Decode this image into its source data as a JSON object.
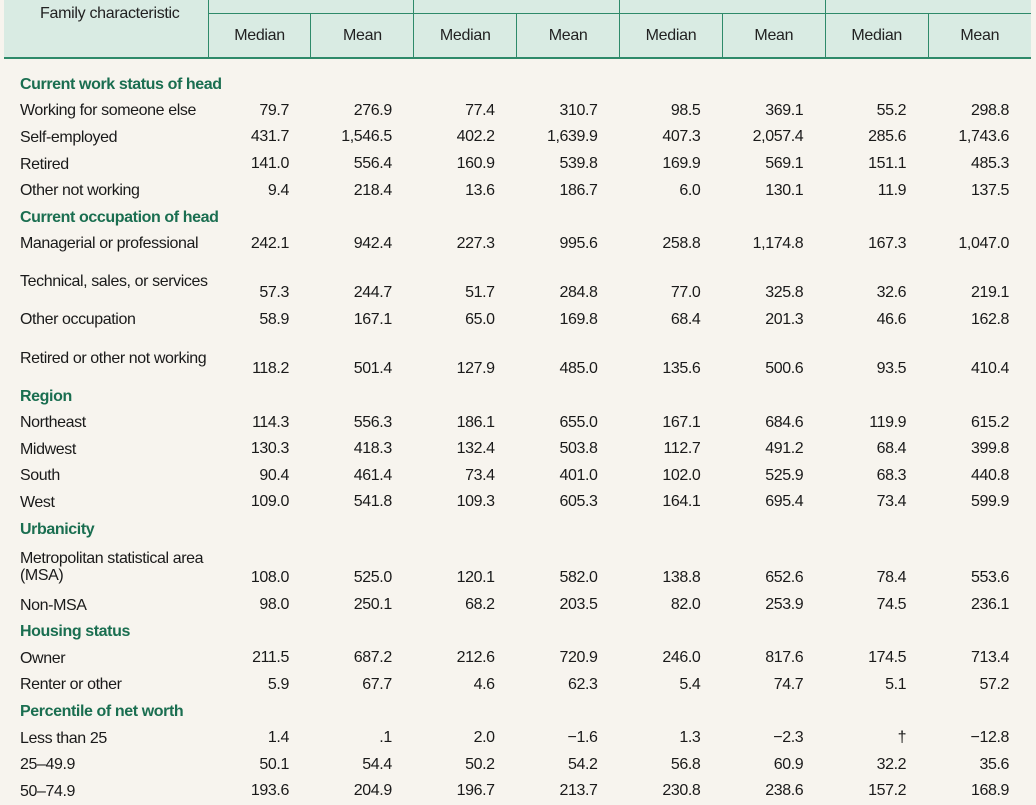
{
  "header": {
    "family_characteristic": "Family characteristic",
    "columns": [
      "Median",
      "Mean",
      "Median",
      "Mean",
      "Median",
      "Mean",
      "Median",
      "Mean"
    ]
  },
  "rows": [
    {
      "type": "section",
      "label": "Current work status of head"
    },
    {
      "label": "Working for someone else",
      "values": [
        "79.7",
        "276.9",
        "77.4",
        "310.7",
        "98.5",
        "369.1",
        "55.2",
        "298.8"
      ]
    },
    {
      "label": "Self-employed",
      "values": [
        "431.7",
        "1,546.5",
        "402.2",
        "1,639.9",
        "407.3",
        "2,057.4",
        "285.6",
        "1,743.6"
      ]
    },
    {
      "label": "Retired",
      "values": [
        "141.0",
        "556.4",
        "160.9",
        "539.8",
        "169.9",
        "569.1",
        "151.1",
        "485.3"
      ]
    },
    {
      "label": "Other not working",
      "values": [
        "9.4",
        "218.4",
        "13.6",
        "186.7",
        "6.0",
        "130.1",
        "11.9",
        "137.5"
      ]
    },
    {
      "type": "section",
      "label": "Current occupation of head"
    },
    {
      "label": "Managerial or professional",
      "values": [
        "242.1",
        "942.4",
        "227.3",
        "995.6",
        "258.8",
        "1,174.8",
        "167.3",
        "1,047.0"
      ]
    },
    {
      "label": "Technical, sales, or services",
      "double": true,
      "values": [
        "57.3",
        "244.7",
        "51.7",
        "284.8",
        "77.0",
        "325.8",
        "32.6",
        "219.1"
      ]
    },
    {
      "label": "Other occupation",
      "values": [
        "58.9",
        "167.1",
        "65.0",
        "169.8",
        "68.4",
        "201.3",
        "46.6",
        "162.8"
      ]
    },
    {
      "label": "Retired or other not working",
      "double": true,
      "values": [
        "118.2",
        "501.4",
        "127.9",
        "485.0",
        "135.6",
        "500.6",
        "93.5",
        "410.4"
      ]
    },
    {
      "type": "section",
      "label": "Region"
    },
    {
      "label": "Northeast",
      "values": [
        "114.3",
        "556.3",
        "186.1",
        "655.0",
        "167.1",
        "684.6",
        "119.9",
        "615.2"
      ]
    },
    {
      "label": "Midwest",
      "values": [
        "130.3",
        "418.3",
        "132.4",
        "503.8",
        "112.7",
        "491.2",
        "68.4",
        "399.8"
      ]
    },
    {
      "label": "South",
      "values": [
        "90.4",
        "461.4",
        "73.4",
        "401.0",
        "102.0",
        "525.9",
        "68.3",
        "440.8"
      ]
    },
    {
      "label": "West",
      "values": [
        "109.0",
        "541.8",
        "109.3",
        "605.3",
        "164.1",
        "695.4",
        "73.4",
        "599.9"
      ]
    },
    {
      "type": "section",
      "label": "Urbanicity"
    },
    {
      "label": "Metropolitan statistical area (MSA)",
      "double": true,
      "values": [
        "108.0",
        "525.0",
        "120.1",
        "582.0",
        "138.8",
        "652.6",
        "78.4",
        "553.6"
      ]
    },
    {
      "label": "Non-MSA",
      "values": [
        "98.0",
        "250.1",
        "68.2",
        "203.5",
        "82.0",
        "253.9",
        "74.5",
        "236.1"
      ]
    },
    {
      "type": "section",
      "label": "Housing status"
    },
    {
      "label": "Owner",
      "values": [
        "211.5",
        "687.2",
        "212.6",
        "720.9",
        "246.0",
        "817.6",
        "174.5",
        "713.4"
      ]
    },
    {
      "label": "Renter or other",
      "values": [
        "5.9",
        "67.7",
        "4.6",
        "62.3",
        "5.4",
        "74.7",
        "5.1",
        "57.2"
      ]
    },
    {
      "type": "section",
      "label": "Percentile of net worth"
    },
    {
      "label": "Less than 25",
      "values": [
        "1.4",
        ".1",
        "2.0",
        "−1.6",
        "1.3",
        "−2.3",
        "†",
        "−12.8"
      ]
    },
    {
      "label": "25–49.9",
      "values": [
        "50.1",
        "54.4",
        "50.2",
        "54.2",
        "56.8",
        "60.9",
        "32.2",
        "35.6"
      ]
    },
    {
      "label": "50–74.9",
      "values": [
        "193.6",
        "204.9",
        "196.7",
        "213.7",
        "230.8",
        "238.6",
        "157.2",
        "168.9"
      ]
    }
  ]
}
